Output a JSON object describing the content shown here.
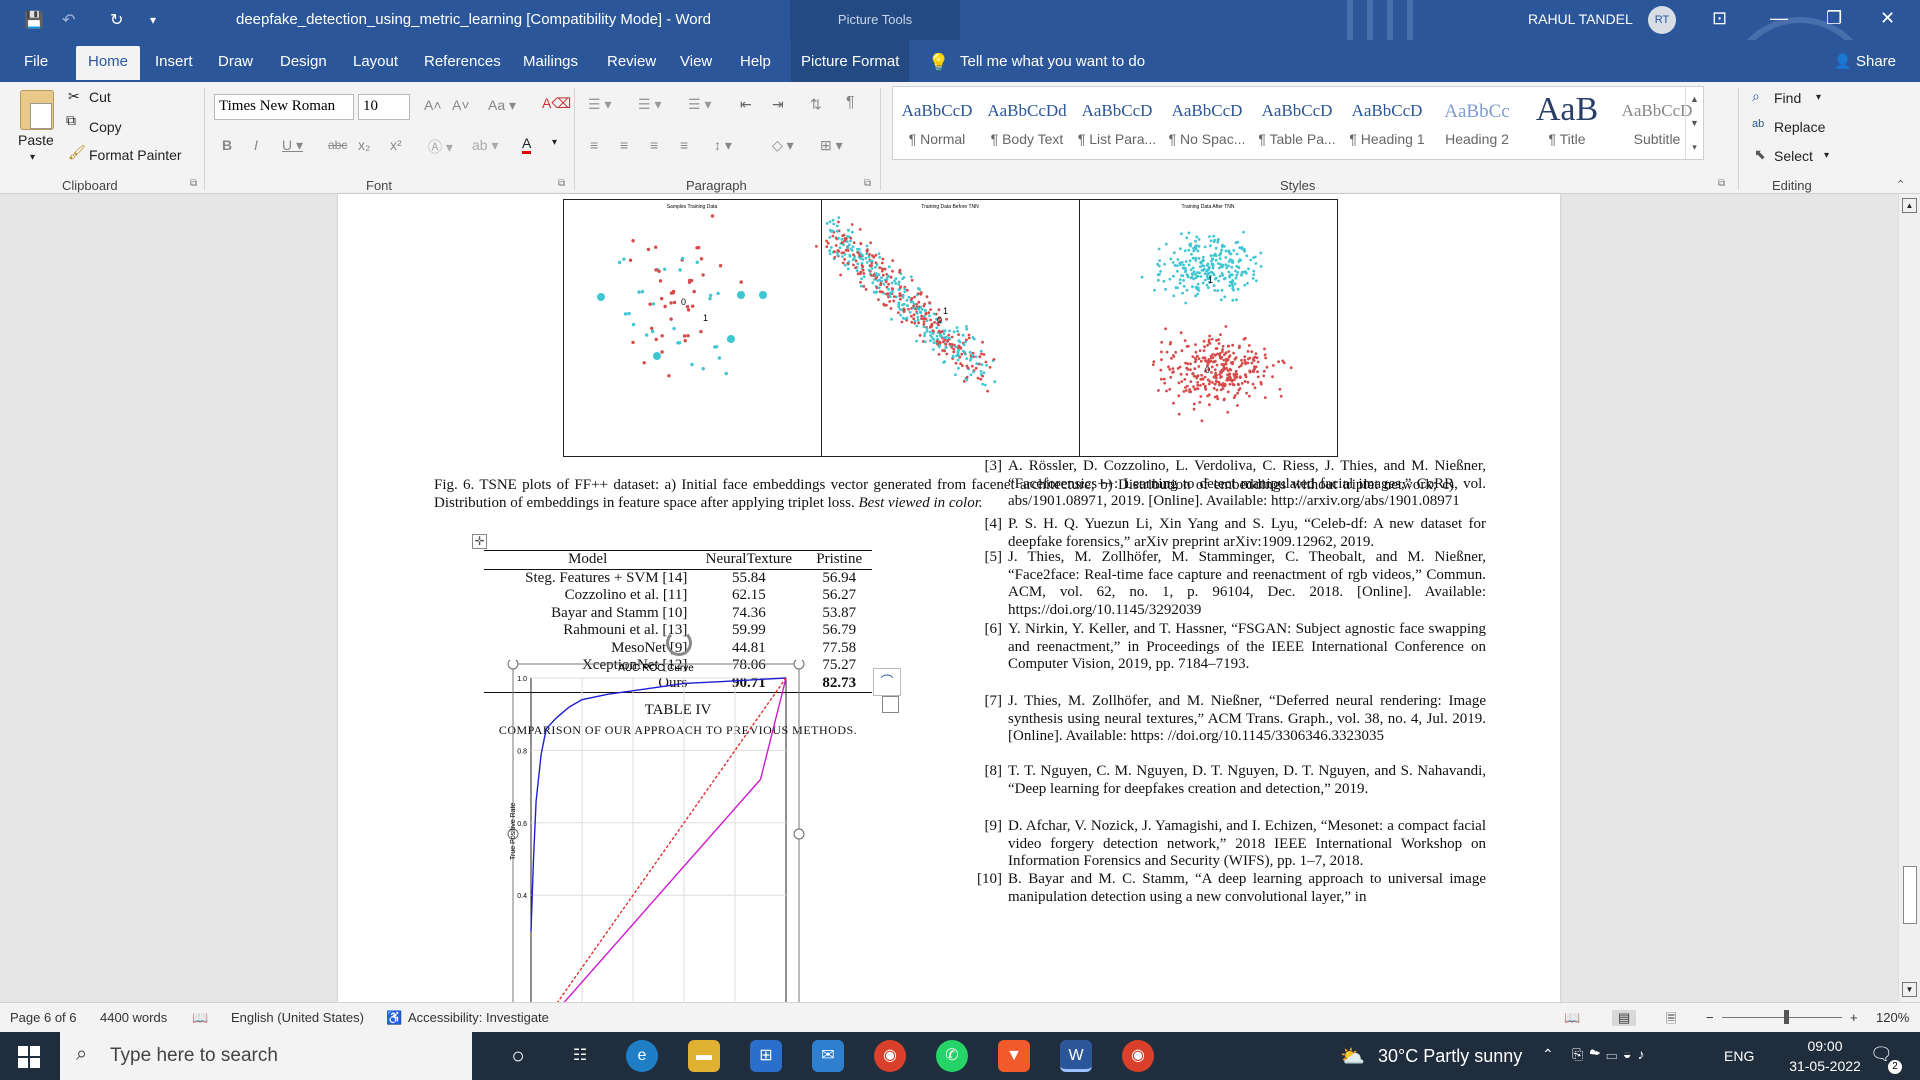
{
  "titlebar": {
    "doc_title": "deepfake_detection_using_metric_learning [Compatibility Mode]  -  Word",
    "context_tab": "Picture Tools",
    "user_name": "RAHUL TANDEL",
    "user_initials": "RT"
  },
  "tabs": [
    "File",
    "Home",
    "Insert",
    "Draw",
    "Design",
    "Layout",
    "References",
    "Mailings",
    "Review",
    "View",
    "Help",
    "Picture Format"
  ],
  "tell_me": "Tell me what you want to do",
  "share_label": "Share",
  "ribbon": {
    "clipboard": {
      "paste": "Paste",
      "cut": "Cut",
      "copy": "Copy",
      "format_painter": "Format Painter",
      "label": "Clipboard"
    },
    "font": {
      "name": "Times New Roman",
      "size": "10",
      "label": "Font"
    },
    "paragraph": {
      "label": "Paragraph"
    },
    "styles": {
      "label": "Styles",
      "items": [
        {
          "preview": "AaBbCcD",
          "name": "¶ Normal"
        },
        {
          "preview": "AaBbCcDd",
          "name": "¶ Body Text"
        },
        {
          "preview": "AaBbCcD",
          "name": "¶ List Para..."
        },
        {
          "preview": "AaBbCcD",
          "name": "¶ No Spac..."
        },
        {
          "preview": "AaBbCcD",
          "name": "¶ Table Pa..."
        },
        {
          "preview": "AaBbCcD",
          "name": "¶ Heading 1"
        },
        {
          "preview": "AaBbCc",
          "name": "Heading 2"
        },
        {
          "preview": "AaB",
          "name": "¶ Title"
        },
        {
          "preview": "AaBbCcD",
          "name": "Subtitle"
        }
      ]
    },
    "editing": {
      "find": "Find",
      "replace": "Replace",
      "select": "Select",
      "label": "Editing"
    }
  },
  "figure": {
    "panels": [
      "Samples Training Data",
      "Training Data Before TNN",
      "Training Data After TNN"
    ],
    "caption_lead": "Fig. 6. TSNE plots of FF++ dataset: a) Initial face embeddings vector generated from facenet architecture; b) Distribution of embeddings without triplet network; c) Distribution of embeddings in feature space after applying triplet loss.",
    "caption_italic": "Best viewed in color.",
    "cluster_labels": [
      "0",
      "1"
    ]
  },
  "table": {
    "headers": [
      "Model",
      "NeuralTexture",
      "Pristine"
    ],
    "rows": [
      [
        "Steg. Features + SVM [14]",
        "55.84",
        "56.94"
      ],
      [
        "Cozzolino et al. [11]",
        "62.15",
        "56.27"
      ],
      [
        "Bayar and Stamm [10]",
        "74.36",
        "53.87"
      ],
      [
        "Rahmouni et al. [13]",
        "59.99",
        "56.79"
      ],
      [
        "MesoNet [9]",
        "44.81",
        "77.58"
      ],
      [
        "XceptionNet [12]",
        "78.06",
        "75.27"
      ],
      [
        "Ours",
        "90.71",
        "82.73"
      ]
    ],
    "number": "TABLE IV",
    "caption": "COMPARISON OF OUR APPROACH TO PREVIOUS METHODS."
  },
  "chart_data": {
    "type": "line",
    "title": "AUC ROC Curve",
    "ylabel": "True Positive Rate",
    "yticks": [
      "1.0",
      "0.8",
      "0.6",
      "0.4"
    ],
    "series": [
      {
        "color": "#1f1fd0",
        "x": [
          0.0,
          0.01,
          0.02,
          0.04,
          0.06,
          0.1,
          0.15,
          0.2,
          0.3,
          0.45,
          0.6,
          0.75,
          1.0
        ],
        "y": [
          0.3,
          0.5,
          0.66,
          0.79,
          0.86,
          0.89,
          0.92,
          0.94,
          0.955,
          0.97,
          0.985,
          0.99,
          1.0
        ]
      },
      {
        "color": "#d01ad0",
        "x": [
          0.0,
          0.9,
          1.0
        ],
        "y": [
          0.0,
          0.72,
          1.0
        ]
      },
      {
        "color": "#e03030",
        "dashed": true,
        "x": [
          0.0,
          1.0
        ],
        "y": [
          0.0,
          1.0
        ]
      }
    ]
  },
  "references": [
    {
      "num": "[3]",
      "text": "A. Rössler, D. Cozzolino, L. Verdoliva, C. Riess, J. Thies, and M. Nießner, “Faceforensics++: Learning to detect manipulated facial images,” CoRR, vol. abs/1901.08971, 2019. [Online]. Available: http://arxiv.org/abs/1901.08971"
    },
    {
      "num": "[4]",
      "text": "P. S. H. Q. Yuezun Li, Xin Yang and S. Lyu, “Celeb-df: A new dataset for deepfake forensics,” arXiv preprint arXiv:1909.12962, 2019."
    },
    {
      "num": "[5]",
      "text": "J. Thies, M. Zollhöfer, M. Stamminger, C. Theobalt, and M. Nießner, “Face2face: Real-time face capture and reenactment of rgb videos,” Commun. ACM, vol. 62, no. 1, p. 96104, Dec. 2018. [Online]. Available: https://doi.org/10.1145/3292039"
    },
    {
      "num": "[6]",
      "text": "Y. Nirkin, Y. Keller, and T. Hassner, “FSGAN: Subject agnostic face swapping and reenactment,” in Proceedings of the IEEE International Conference on Computer Vision, 2019, pp. 7184–7193."
    },
    {
      "num": "[7]",
      "text": "J. Thies, M. Zollhöfer, and M. Nießner, “Deferred neural rendering: Image synthesis using neural textures,” ACM Trans. Graph., vol. 38, no. 4, Jul. 2019. [Online]. Available: https: //doi.org/10.1145/3306346.3323035"
    },
    {
      "num": "[8]",
      "text": "T. T. Nguyen, C. M. Nguyen, D. T. Nguyen, D. T. Nguyen, and S. Nahavandi, “Deep learning for deepfakes creation and detection,” 2019."
    },
    {
      "num": "[9]",
      "text": "D. Afchar, V. Nozick, J. Yamagishi, and I. Echizen, “Mesonet: a compact facial video forgery detection network,” 2018 IEEE International Workshop on Information Forensics and Security (WIFS), pp. 1–7, 2018."
    },
    {
      "num": "[10]",
      "text": "B. Bayar and M. C. Stamm, “A deep learning approach to universal image manipulation detection using a new convolutional layer,” in"
    }
  ],
  "status": {
    "page": "Page 6 of 6",
    "words": "4400 words",
    "language": "English (United States)",
    "accessibility": "Accessibility: Investigate",
    "zoom": "120%"
  },
  "taskbar": {
    "search_placeholder": "Type here to search",
    "weather": "30°C  Partly sunny",
    "lang": "ENG",
    "time": "09:00",
    "date": "31-05-2022",
    "notif": "2"
  }
}
